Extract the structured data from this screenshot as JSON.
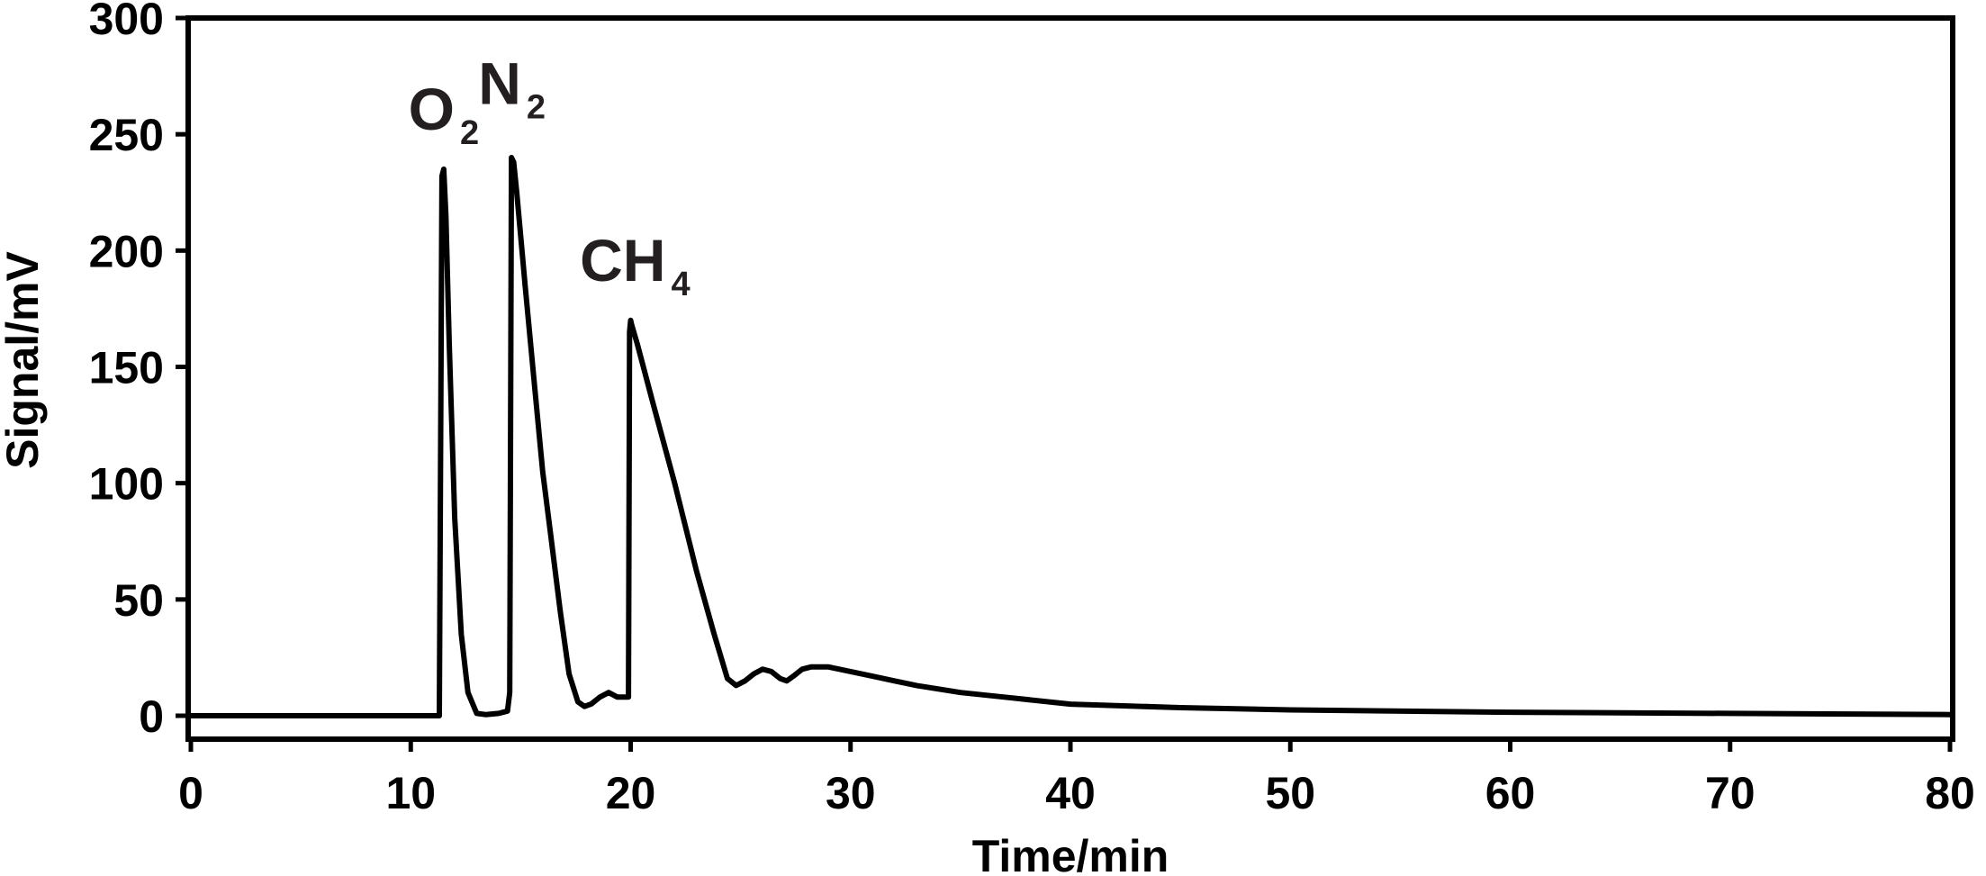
{
  "chart_data": {
    "type": "line",
    "title": "",
    "xlabel": "Time/min",
    "ylabel": "Signal/mV",
    "xlim": [
      0,
      80
    ],
    "ylim": [
      -5,
      300
    ],
    "xticks": [
      "0",
      "10",
      "20",
      "30",
      "40",
      "50",
      "60",
      "70",
      "80"
    ],
    "yticks": [
      "0",
      "50",
      "100",
      "150",
      "200",
      "250",
      "300"
    ],
    "grid": false,
    "legend": "none",
    "line_color": "#000000",
    "annotations": [
      {
        "base": "O",
        "sub": "2",
        "x": 11.5,
        "y": 252
      },
      {
        "base": "N",
        "sub": "2",
        "x": 14.6,
        "y": 263
      },
      {
        "base": "CH",
        "sub": "4",
        "x": 20.2,
        "y": 187
      }
    ],
    "series": [
      {
        "x": [
          0,
          11.3,
          11.42,
          11.5,
          11.6,
          11.75,
          12.0,
          12.3,
          12.6,
          13.0,
          13.4,
          14.0,
          14.4,
          14.5,
          14.58,
          14.68,
          14.82,
          15.2,
          15.6,
          16.0,
          16.4,
          16.8,
          17.2,
          17.6,
          17.9,
          18.2,
          18.6,
          19.0,
          19.4,
          19.6,
          19.9,
          19.95,
          20.0,
          20.05,
          20.3,
          21.0,
          22.0,
          23.0,
          23.8,
          24.4,
          24.8,
          25.2,
          25.6,
          26.0,
          26.4,
          26.8,
          27.1,
          27.4,
          27.8,
          28.2,
          29.0,
          30.0,
          31.0,
          32.0,
          33.0,
          35.0,
          37.0,
          40.0,
          45.0,
          50.0,
          60.0,
          70.0,
          80.0
        ],
        "y": [
          0,
          0,
          232,
          235,
          215,
          160,
          85,
          35,
          10,
          1,
          0.5,
          1,
          2,
          10,
          240,
          238,
          225,
          185,
          145,
          105,
          75,
          45,
          18,
          6,
          4,
          5,
          8,
          10,
          8,
          8,
          8,
          165,
          170,
          168,
          160,
          135,
          100,
          62,
          35,
          16,
          13,
          15,
          18,
          20,
          19,
          16,
          15,
          17,
          20,
          21,
          21,
          19,
          17,
          15,
          13,
          10,
          8,
          5,
          3.5,
          2.5,
          1.5,
          1,
          0.5
        ]
      }
    ]
  }
}
